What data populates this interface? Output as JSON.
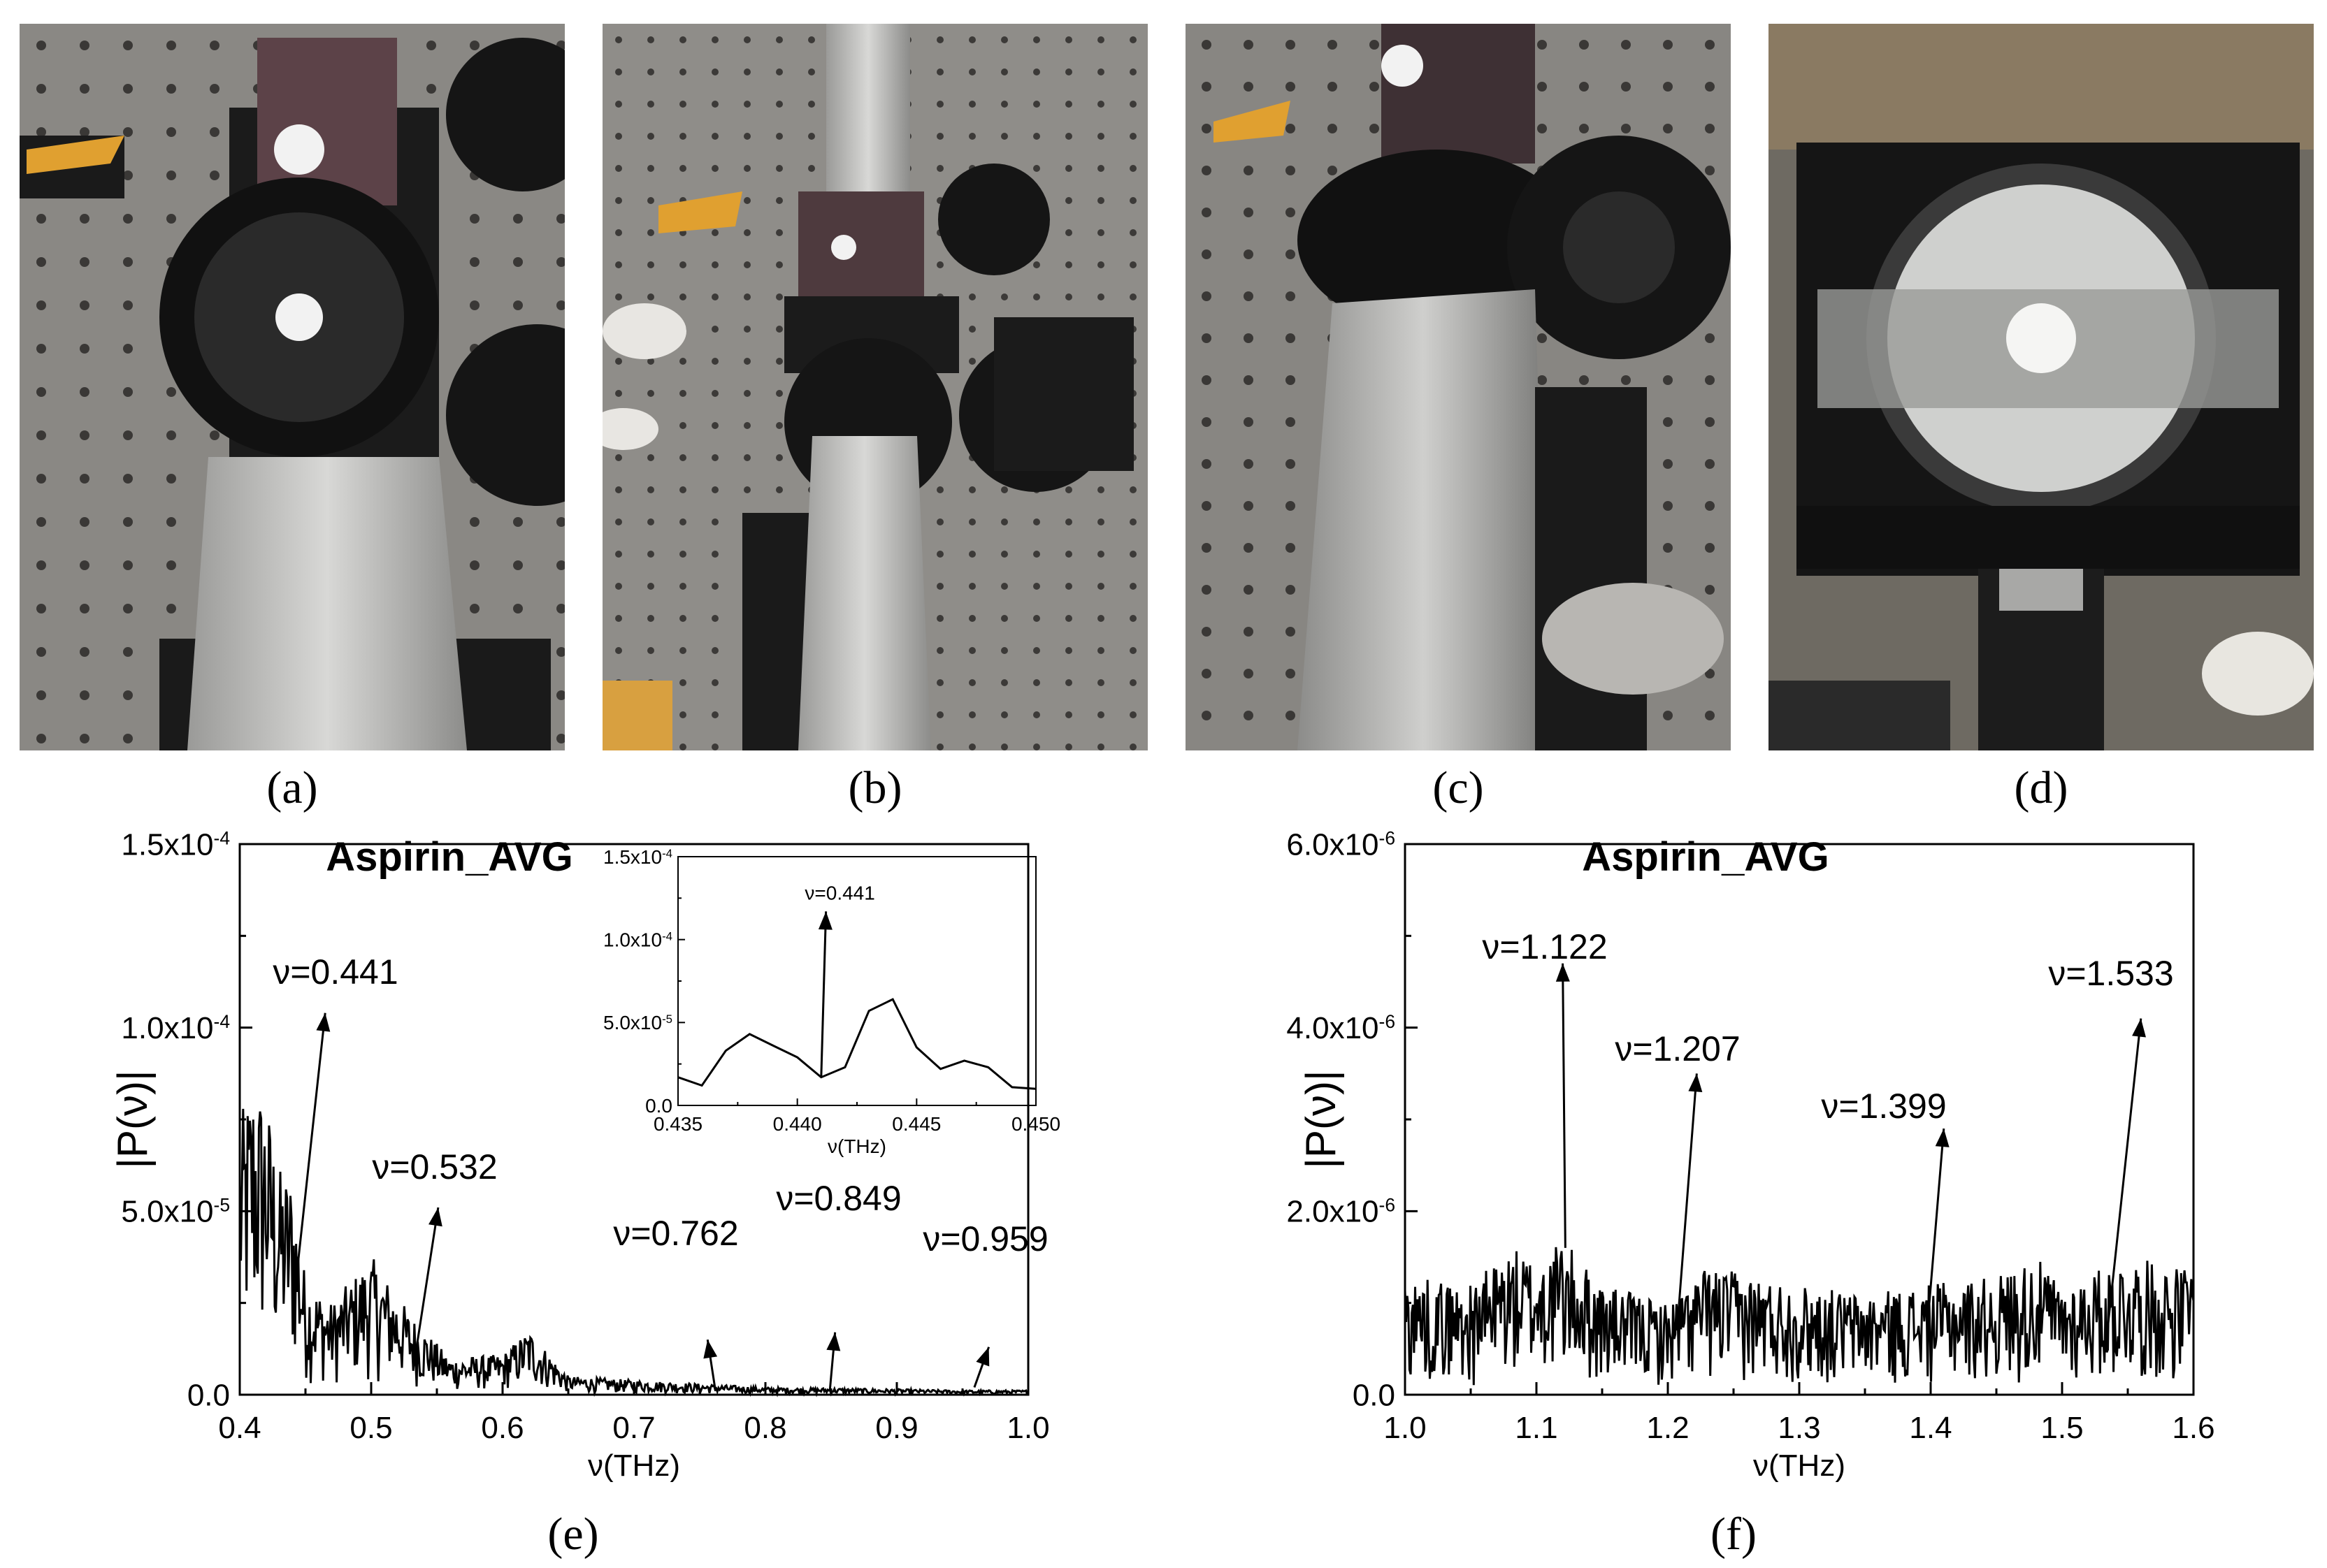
{
  "panel_labels": {
    "a": "(a)",
    "b": "(b)",
    "c": "(c)",
    "d": "(d)",
    "e": "(e)",
    "f": "(f)"
  },
  "chart_data": [
    {
      "type": "line",
      "title": "Aspirin_AVG",
      "xlabel": "ν(THz)",
      "ylabel": "|P(ν)|",
      "xlim": [
        0.4,
        1.0
      ],
      "ylim": [
        0,
        0.00015
      ],
      "xticks": [
        "0.4",
        "0.5",
        "0.6",
        "0.7",
        "0.8",
        "0.9",
        "1.0"
      ],
      "yticks": [
        "0.0",
        "5.0x10",
        "1.0x10",
        "1.5x10"
      ],
      "ytick_exponents": [
        "",
        "-5",
        "-4",
        "-4"
      ],
      "envelope": {
        "x": [
          0.4,
          0.41,
          0.42,
          0.43,
          0.44,
          0.45,
          0.47,
          0.5,
          0.53,
          0.56,
          0.6,
          0.62,
          0.65,
          0.7,
          0.75,
          0.8,
          0.85,
          0.9,
          0.95,
          1.0
        ],
        "max": [
          7.5e-05,
          8.7e-05,
          8.2e-05,
          6.2e-05,
          6e-05,
          3.2e-05,
          2.5e-05,
          3.8e-05,
          2.2e-05,
          1e-05,
          1.1e-05,
          1.8e-05,
          5e-06,
          4e-06,
          3e-06,
          2e-06,
          1.8e-06,
          1.5e-06,
          1.2e-06,
          1.2e-06
        ]
      },
      "annotations": [
        {
          "text": "ν=0.441",
          "x": 0.441
        },
        {
          "text": "ν=0.532",
          "x": 0.532
        },
        {
          "text": "ν=0.762",
          "x": 0.762
        },
        {
          "text": "ν=0.849",
          "x": 0.849
        },
        {
          "text": "ν=0.959",
          "x": 0.959
        }
      ],
      "inset": {
        "type": "line",
        "xlabel": "ν(THz)",
        "xlim": [
          0.435,
          0.45
        ],
        "ylim": [
          0,
          0.00015
        ],
        "xticks": [
          "0.435",
          "0.440",
          "0.445",
          "0.450"
        ],
        "yticks": [
          "0.0",
          "5.0x10",
          "1.0x10",
          "1.5x10"
        ],
        "ytick_exponents": [
          "",
          "-5",
          "-4",
          "-4"
        ],
        "x": [
          0.435,
          0.436,
          0.437,
          0.438,
          0.439,
          0.44,
          0.441,
          0.442,
          0.443,
          0.444,
          0.445,
          0.446,
          0.447,
          0.448,
          0.449,
          0.45
        ],
        "y": [
          1.7e-05,
          1.2e-05,
          3.3e-05,
          4.3e-05,
          3.6e-05,
          2.9e-05,
          1.7e-05,
          2.3e-05,
          5.7e-05,
          6.4e-05,
          3.5e-05,
          2.2e-05,
          2.7e-05,
          2.3e-05,
          1.1e-05,
          1e-05
        ],
        "annotation": {
          "text": "ν=0.441",
          "x": 0.441
        }
      }
    },
    {
      "type": "line",
      "title": "Aspirin_AVG",
      "xlabel": "ν(THz)",
      "ylabel": "|P(ν)|",
      "xlim": [
        1.0,
        1.6
      ],
      "ylim": [
        0,
        6e-06
      ],
      "xticks": [
        "1.0",
        "1.1",
        "1.2",
        "1.3",
        "1.4",
        "1.5",
        "1.6"
      ],
      "yticks": [
        "0.0",
        "2.0x10",
        "4.0x10",
        "6.0x10"
      ],
      "ytick_exponents": [
        "",
        "-6",
        "-6",
        "-6"
      ],
      "envelope": {
        "x": [
          1.0,
          1.05,
          1.08,
          1.1,
          1.12,
          1.15,
          1.2,
          1.23,
          1.3,
          1.35,
          1.4,
          1.45,
          1.48,
          1.5,
          1.55,
          1.59
        ],
        "max": [
          1.3e-06,
          1.2e-06,
          1.6e-06,
          1.5e-06,
          1.7e-06,
          1.2e-06,
          1e-06,
          1.4e-06,
          1.2e-06,
          1.1e-06,
          1.2e-06,
          1.3e-06,
          1.5e-06,
          1.2e-06,
          1.5e-06,
          1.4e-06
        ]
      },
      "annotations": [
        {
          "text": "ν=1.122",
          "x": 1.122
        },
        {
          "text": "ν=1.207",
          "x": 1.207
        },
        {
          "text": "ν=1.399",
          "x": 1.399
        },
        {
          "text": "ν=1.533",
          "x": 1.533
        }
      ]
    }
  ]
}
